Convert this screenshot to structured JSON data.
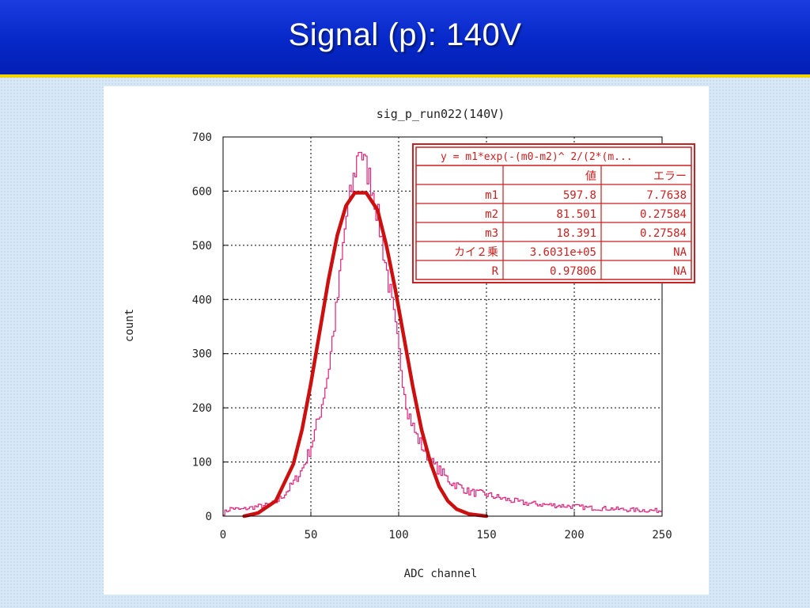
{
  "slide": {
    "title": "Signal (p):  140V"
  },
  "colors": {
    "title_bar": "#0628c8",
    "title_underline": "#f2d400",
    "histogram": "#e0237a",
    "fit_curve": "#cc1010",
    "table_border": "#cc1f1f"
  },
  "chart_data": {
    "type": "line",
    "title": "sig_p_run022(140V)",
    "xlabel": "ADC channel",
    "ylabel": "count",
    "xlim": [
      0,
      250
    ],
    "ylim": [
      0,
      700
    ],
    "x_ticks": [
      "0",
      "50",
      "100",
      "150",
      "200",
      "250"
    ],
    "y_ticks": [
      "0",
      "100",
      "200",
      "300",
      "400",
      "500",
      "600",
      "700"
    ],
    "grid": true,
    "series": [
      {
        "kind": "histogram-step",
        "x": [
          0,
          5,
          10,
          15,
          20,
          25,
          30,
          35,
          40,
          45,
          50,
          55,
          60,
          65,
          70,
          75,
          78,
          80,
          82,
          85,
          88,
          90,
          95,
          100,
          105,
          110,
          115,
          120,
          125,
          130,
          135,
          140,
          150,
          160,
          170,
          180,
          190,
          200,
          210,
          220,
          230,
          240,
          250
        ],
        "y": [
          5,
          15,
          12,
          15,
          18,
          20,
          25,
          40,
          60,
          85,
          125,
          185,
          265,
          390,
          545,
          630,
          690,
          655,
          640,
          610,
          560,
          520,
          420,
          310,
          200,
          150,
          120,
          95,
          80,
          62,
          55,
          45,
          40,
          32,
          25,
          22,
          20,
          18,
          15,
          14,
          12,
          11,
          10
        ]
      },
      {
        "kind": "gaussian-fit",
        "x": [
          12,
          20,
          30,
          40,
          45,
          50,
          55,
          60,
          65,
          70,
          75,
          81.5,
          88,
          93,
          98,
          103,
          108,
          113,
          118,
          123,
          128,
          133,
          140,
          150
        ],
        "y": [
          0,
          6,
          28,
          96,
          160,
          245,
          340,
          436,
          518,
          573,
          597,
          597,
          565,
          500,
          420,
          330,
          240,
          160,
          100,
          55,
          28,
          13,
          4,
          0
        ]
      }
    ],
    "fit_table": {
      "header": "y = m1*exp(-(m0-m2)^ 2/(2*(m...",
      "columns": [
        "",
        "値",
        "エラー"
      ],
      "rows": [
        [
          "m1",
          "597.8",
          "7.7638"
        ],
        [
          "m2",
          "81.501",
          "0.27584"
        ],
        [
          "m3",
          "18.391",
          "0.27584"
        ],
        [
          "カイ２乗",
          "3.6031e+05",
          "NA"
        ],
        [
          "R",
          "0.97806",
          "NA"
        ]
      ]
    }
  }
}
